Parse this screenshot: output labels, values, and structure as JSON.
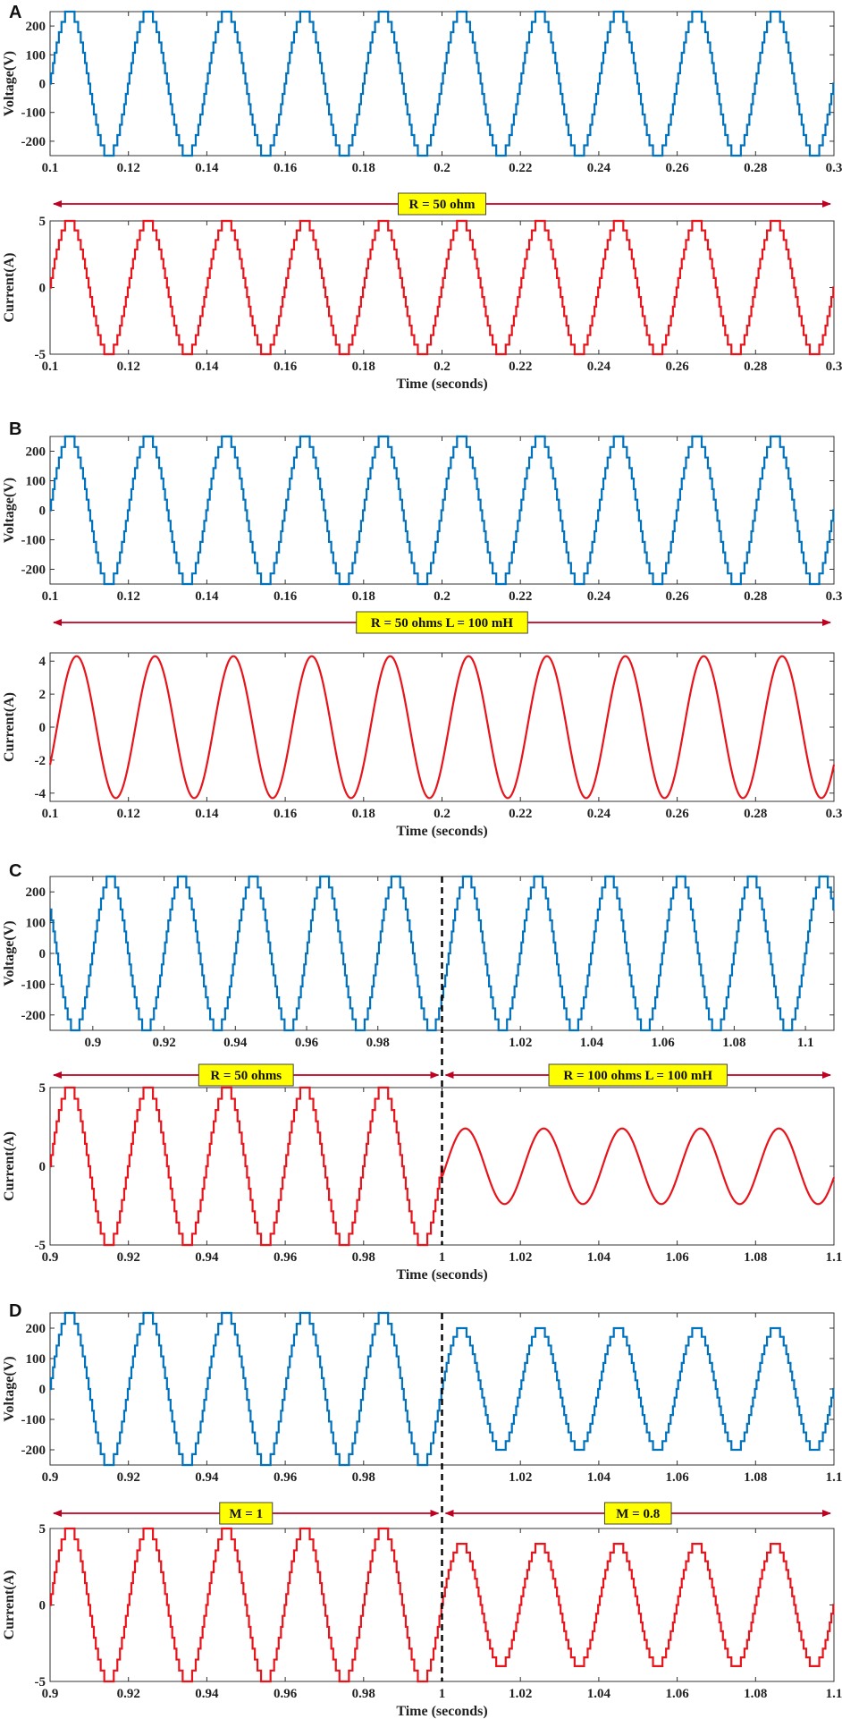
{
  "colors": {
    "voltage": "#0072BD",
    "current": "#E8141B",
    "arrow": "#C00020",
    "label_bg": "#FFFF00"
  },
  "chart_data": [
    {
      "type": "line",
      "panel": "A",
      "signal": "voltage",
      "waveform": "staircase",
      "x_start": 0.1,
      "x_end": 0.3,
      "xlim": [
        0.1,
        0.3
      ],
      "x_ticks": [
        "0.1",
        "0.12",
        "0.14",
        "0.16",
        "0.18",
        "0.2",
        "0.22",
        "0.24",
        "0.26",
        "0.28",
        "0.3"
      ],
      "ylim": [
        -250,
        250
      ],
      "y_ticks": [
        "200",
        "100",
        "0",
        "-100",
        "-200"
      ],
      "ylabel": "Voltage(V)",
      "xlabel": "",
      "segments": [
        {
          "x_from": 0.1,
          "x_to": 0.3,
          "amplitude": 250,
          "frequency_hz": 50,
          "phase_deg": 0
        }
      ]
    },
    {
      "type": "line",
      "panel": "A",
      "signal": "current",
      "waveform": "staircase",
      "x_start": 0.1,
      "x_end": 0.3,
      "xlim": [
        0.1,
        0.3
      ],
      "x_ticks": [
        "0.1",
        "0.12",
        "0.14",
        "0.16",
        "0.18",
        "0.2",
        "0.22",
        "0.24",
        "0.26",
        "0.28",
        "0.3"
      ],
      "ylim": [
        -5,
        5
      ],
      "y_ticks": [
        "5",
        "0",
        "-5"
      ],
      "ylabel": "Current(A)",
      "xlabel": "Time (seconds)",
      "segments": [
        {
          "x_from": 0.1,
          "x_to": 0.3,
          "amplitude": 5,
          "frequency_hz": 50,
          "phase_deg": 0
        }
      ]
    },
    {
      "type": "line",
      "panel": "B",
      "signal": "voltage",
      "waveform": "staircase",
      "x_start": 0.1,
      "x_end": 0.3,
      "xlim": [
        0.1,
        0.3
      ],
      "x_ticks": [
        "0.1",
        "0.12",
        "0.14",
        "0.16",
        "0.18",
        "0.2",
        "0.22",
        "0.24",
        "0.26",
        "0.28",
        "0.3"
      ],
      "ylim": [
        -250,
        250
      ],
      "y_ticks": [
        "200",
        "100",
        "0",
        "-100",
        "-200"
      ],
      "ylabel": "Voltage(V)",
      "xlabel": "",
      "segments": [
        {
          "x_from": 0.1,
          "x_to": 0.3,
          "amplitude": 250,
          "frequency_hz": 50,
          "phase_deg": 0
        }
      ]
    },
    {
      "type": "line",
      "panel": "B",
      "signal": "current",
      "waveform": "sine",
      "x_start": 0.1,
      "x_end": 0.3,
      "xlim": [
        0.1,
        0.3
      ],
      "x_ticks": [
        "0.1",
        "0.12",
        "0.14",
        "0.16",
        "0.18",
        "0.2",
        "0.22",
        "0.24",
        "0.26",
        "0.28",
        "0.3"
      ],
      "ylim": [
        -4.5,
        4.5
      ],
      "y_ticks": [
        "4",
        "2",
        "0",
        "-2",
        "-4"
      ],
      "ylabel": "Current(A)",
      "xlabel": "Time (seconds)",
      "segments": [
        {
          "x_from": 0.1,
          "x_to": 0.3,
          "amplitude": 4.3,
          "frequency_hz": 50,
          "phase_deg": -32
        }
      ]
    },
    {
      "type": "line",
      "panel": "C",
      "signal": "voltage",
      "waveform": "staircase",
      "x_start": 0.888,
      "x_end": 1.108,
      "xlim": [
        0.888,
        1.108
      ],
      "x_ticks": [
        "0.9",
        "0.92",
        "0.94",
        "0.96",
        "0.98",
        "1.02",
        "1.04",
        "1.06",
        "1.08",
        "1.1"
      ],
      "ylim": [
        -250,
        250
      ],
      "y_ticks": [
        "200",
        "100",
        "0",
        "-100",
        "-200"
      ],
      "ylabel": "Voltage(V)",
      "xlabel": "",
      "segments": [
        {
          "x_from": 0.888,
          "x_to": 1.108,
          "amplitude": 250,
          "frequency_hz": 50,
          "phase_deg": 0
        }
      ]
    },
    {
      "type": "line",
      "panel": "C",
      "signal": "current",
      "waveform": "mixed",
      "x_start": 0.9,
      "x_end": 1.1,
      "xlim": [
        0.9,
        1.1
      ],
      "x_ticks": [
        "0.9",
        "0.92",
        "0.94",
        "0.96",
        "0.98",
        "1",
        "1.02",
        "1.04",
        "1.06",
        "1.08",
        "1.1"
      ],
      "ylim": [
        -5,
        5
      ],
      "y_ticks": [
        "5",
        "0",
        "-5"
      ],
      "ylabel": "Current(A)",
      "xlabel": "Time (seconds)",
      "segments": [
        {
          "x_from": 0.9,
          "x_to": 1.0,
          "waveform": "staircase",
          "amplitude": 5,
          "frequency_hz": 50,
          "phase_deg": 0
        },
        {
          "x_from": 1.0,
          "x_to": 1.1,
          "waveform": "sine",
          "amplitude": 2.4,
          "frequency_hz": 50,
          "phase_deg": -17
        }
      ]
    },
    {
      "type": "line",
      "panel": "D",
      "signal": "voltage",
      "waveform": "staircase",
      "x_start": 0.9,
      "x_end": 1.1,
      "xlim": [
        0.9,
        1.1
      ],
      "x_ticks": [
        "0.9",
        "0.92",
        "0.94",
        "0.96",
        "0.98",
        "1.02",
        "1.04",
        "1.06",
        "1.08",
        "1.1"
      ],
      "ylim": [
        -250,
        250
      ],
      "y_ticks": [
        "200",
        "100",
        "0",
        "-100",
        "-200"
      ],
      "ylabel": "Voltage(V)",
      "xlabel": "",
      "segments": [
        {
          "x_from": 0.9,
          "x_to": 1.0,
          "amplitude": 250,
          "frequency_hz": 50,
          "phase_deg": 0
        },
        {
          "x_from": 1.0,
          "x_to": 1.1,
          "amplitude": 200,
          "frequency_hz": 50,
          "phase_deg": 0
        }
      ]
    },
    {
      "type": "line",
      "panel": "D",
      "signal": "current",
      "waveform": "staircase",
      "x_start": 0.9,
      "x_end": 1.1,
      "xlim": [
        0.9,
        1.1
      ],
      "x_ticks": [
        "0.9",
        "0.92",
        "0.94",
        "0.96",
        "0.98",
        "1",
        "1.02",
        "1.04",
        "1.06",
        "1.08",
        "1.1"
      ],
      "ylim": [
        -5,
        5
      ],
      "y_ticks": [
        "5",
        "0",
        "-5"
      ],
      "ylabel": "Current(A)",
      "xlabel": "Time (seconds)",
      "segments": [
        {
          "x_from": 0.9,
          "x_to": 1.0,
          "amplitude": 5,
          "frequency_hz": 50,
          "phase_deg": 0
        },
        {
          "x_from": 1.0,
          "x_to": 1.1,
          "amplitude": 4,
          "frequency_hz": 50,
          "phase_deg": 0
        }
      ]
    }
  ],
  "panels": [
    {
      "letter": "A",
      "annotations": [
        {
          "text": "R = 50 ohm",
          "span": [
            0.1,
            0.3
          ]
        }
      ],
      "divider_x": null
    },
    {
      "letter": "B",
      "annotations": [
        {
          "text": "R = 50 ohms L = 100 mH",
          "span": [
            0.1,
            0.3
          ]
        }
      ],
      "divider_x": null
    },
    {
      "letter": "C",
      "annotations": [
        {
          "text": "R = 50 ohms",
          "span": [
            0.9,
            1.0
          ]
        },
        {
          "text": "R = 100 ohms L = 100 mH",
          "span": [
            1.0,
            1.1
          ]
        }
      ],
      "divider_x": 1.0
    },
    {
      "letter": "D",
      "annotations": [
        {
          "text": "M = 1",
          "span": [
            0.9,
            1.0
          ]
        },
        {
          "text": "M = 0.8",
          "span": [
            1.0,
            1.1
          ]
        }
      ],
      "divider_x": 1.0
    }
  ]
}
